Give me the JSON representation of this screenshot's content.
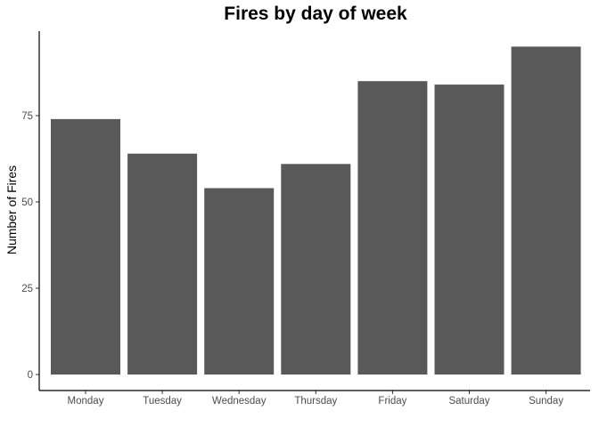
{
  "chart_data": {
    "type": "bar",
    "title": "Fires by day of week",
    "xlabel": "",
    "ylabel": "Number of Fires",
    "categories": [
      "Monday",
      "Tuesday",
      "Wednesday",
      "Thursday",
      "Friday",
      "Saturday",
      "Sunday"
    ],
    "values": [
      74,
      64,
      54,
      61,
      85,
      84,
      95
    ],
    "ylim": [
      0,
      100
    ],
    "yticks": [
      0,
      25,
      50,
      75
    ],
    "grid": false,
    "legend": "none",
    "bar_color": "#595959"
  }
}
